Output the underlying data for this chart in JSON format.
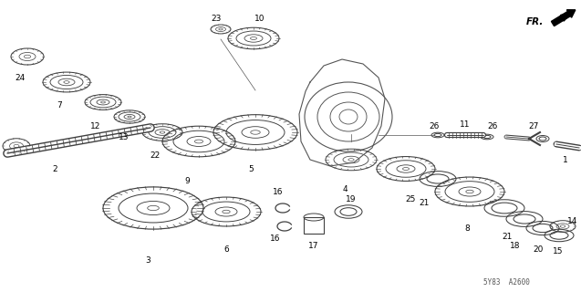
{
  "bg_color": "#ffffff",
  "diagram_code": "5Y83  A2600",
  "fr_label": "FR.",
  "gear_color": "#404040",
  "line_color": "#555555"
}
